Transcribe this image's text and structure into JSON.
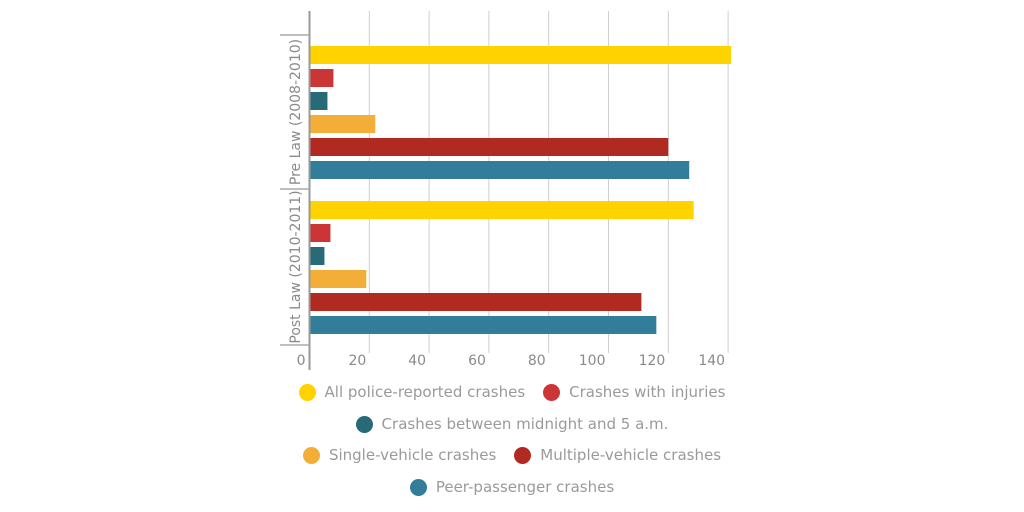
{
  "chart_data": {
    "type": "bar",
    "orientation": "horizontal",
    "categories": [
      "Pre Law (2008-2010)",
      "Post Law (2010-2011)"
    ],
    "series": [
      {
        "name": "All police-reported crashes",
        "color": "#FFD200",
        "values": [
          141,
          128.5
        ]
      },
      {
        "name": "Crashes with injuries",
        "color": "#CC3535",
        "values": [
          8,
          7
        ]
      },
      {
        "name": "Crashes between midnight and 5 a.m.",
        "color": "#286A78",
        "values": [
          6,
          5
        ]
      },
      {
        "name": "Single-vehicle crashes",
        "color": "#F2AE37",
        "values": [
          22,
          19
        ]
      },
      {
        "name": "Multiple-vehicle crashes",
        "color": "#B02A21",
        "values": [
          120,
          111
        ]
      },
      {
        "name": "Peer-passenger crashes",
        "color": "#327D9A",
        "values": [
          127,
          116
        ]
      }
    ],
    "xticks": [
      "0",
      "20",
      "40",
      "60",
      "80",
      "100",
      "120",
      "140"
    ],
    "xlim": [
      0,
      140
    ],
    "grid": true,
    "legend_placement": "bottom"
  }
}
